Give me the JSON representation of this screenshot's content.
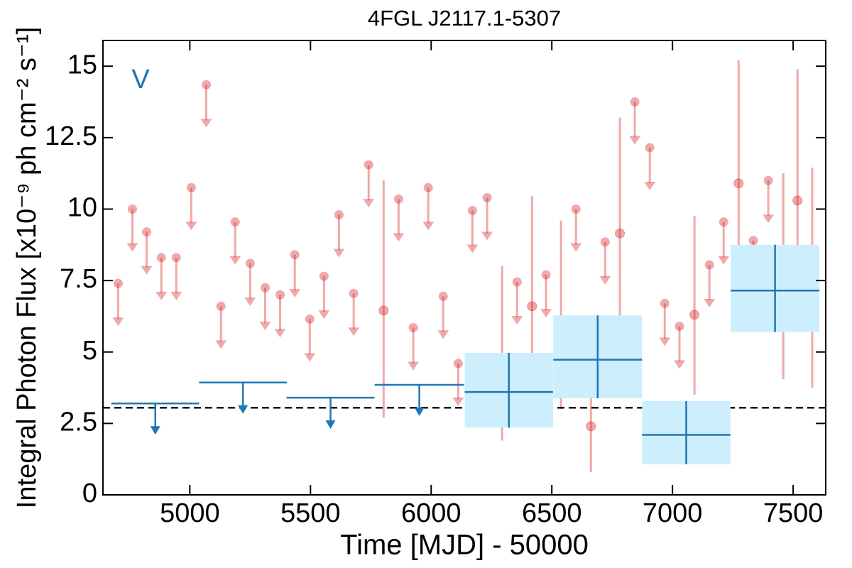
{
  "chart_data": {
    "type": "lightcurve",
    "title": "4FGL J2117.1-5307",
    "xlabel": "Time [MJD] - 50000",
    "ylabel": "Integral Photon Flux [x10⁻⁹ ph cm⁻² s⁻¹]",
    "annotation": "V",
    "xlim": [
      4640,
      7635
    ],
    "ylim": [
      0,
      15.9
    ],
    "xticks": [
      5000,
      5500,
      6000,
      6500,
      7000,
      7500
    ],
    "yticks": [
      0,
      2.5,
      5,
      7.5,
      10,
      12.5,
      15
    ],
    "reference_line": {
      "value": 3.05,
      "color": "#000000"
    },
    "series": [
      {
        "color": "#d62728",
        "x": [
          4703,
          4762,
          4821,
          4882,
          4944,
          5006,
          5068,
          5129,
          5188,
          5250,
          5312,
          5374,
          5435,
          5497,
          5556,
          5618,
          5679,
          5741,
          5803,
          5865,
          5926,
          5988,
          6050,
          6112,
          6171,
          6232,
          6294,
          6356,
          6418,
          6476,
          6538,
          6600,
          6662,
          6721,
          6782,
          6844,
          6906,
          6968,
          7029,
          7091,
          7153,
          7212,
          7274,
          7335,
          7397,
          7459,
          7518,
          7579
        ],
        "values": [
          7.4,
          10.0,
          9.2,
          8.3,
          8.3,
          10.75,
          14.35,
          6.6,
          9.55,
          8.1,
          7.25,
          7.0,
          8.4,
          6.15,
          7.65,
          9.8,
          7.05,
          11.55,
          6.45,
          10.35,
          5.85,
          10.75,
          6.95,
          4.6,
          9.95,
          10.4,
          4.55,
          7.45,
          6.6,
          7.7,
          5.95,
          10.0,
          2.4,
          8.85,
          9.15,
          13.75,
          12.15,
          6.7,
          5.9,
          6.3,
          8.05,
          9.55,
          10.9,
          8.9,
          11.0,
          7.25,
          10.3,
          7.25
        ],
        "upper_limits": [
          true,
          true,
          true,
          true,
          true,
          true,
          true,
          true,
          true,
          true,
          true,
          true,
          true,
          true,
          true,
          true,
          true,
          true,
          false,
          true,
          true,
          true,
          true,
          true,
          true,
          true,
          false,
          true,
          false,
          true,
          false,
          true,
          false,
          true,
          false,
          true,
          true,
          true,
          true,
          false,
          true,
          true,
          false,
          true,
          true,
          false,
          false,
          false
        ],
        "err_minus": [
          null,
          null,
          null,
          null,
          null,
          null,
          null,
          null,
          null,
          null,
          null,
          null,
          null,
          null,
          null,
          null,
          null,
          null,
          3.75,
          null,
          null,
          null,
          null,
          null,
          null,
          null,
          2.65,
          null,
          3.1,
          null,
          2.95,
          null,
          1.6,
          null,
          3.45,
          null,
          null,
          null,
          null,
          2.8,
          null,
          null,
          3.65,
          null,
          null,
          3.2,
          3.95,
          3.5
        ],
        "err_plus": [
          null,
          null,
          null,
          null,
          null,
          null,
          null,
          null,
          null,
          null,
          null,
          null,
          null,
          null,
          null,
          null,
          null,
          null,
          4.55,
          null,
          null,
          null,
          null,
          null,
          null,
          null,
          3.45,
          null,
          3.85,
          null,
          3.65,
          null,
          2.8,
          null,
          4.05,
          null,
          null,
          null,
          null,
          3.45,
          null,
          null,
          4.3,
          null,
          null,
          4.0,
          4.6,
          4.2
        ]
      },
      {
        "color": "#1f77b4",
        "box_color": "#cdeefd",
        "x": [
          4857,
          5220,
          5583,
          5951,
          6322,
          6690,
          7057,
          7425
        ],
        "xerr": [
          182,
          182,
          182,
          185,
          183,
          184,
          183,
          184
        ],
        "values": [
          3.2,
          3.93,
          3.4,
          3.85,
          3.6,
          4.73,
          2.1,
          7.15
        ],
        "upper_limits": [
          true,
          true,
          true,
          true,
          false,
          false,
          false,
          false
        ],
        "err_minus": [
          null,
          null,
          null,
          null,
          1.25,
          1.35,
          1.03,
          1.45
        ],
        "err_plus": [
          null,
          null,
          null,
          null,
          1.37,
          1.55,
          1.18,
          1.6
        ]
      }
    ]
  }
}
